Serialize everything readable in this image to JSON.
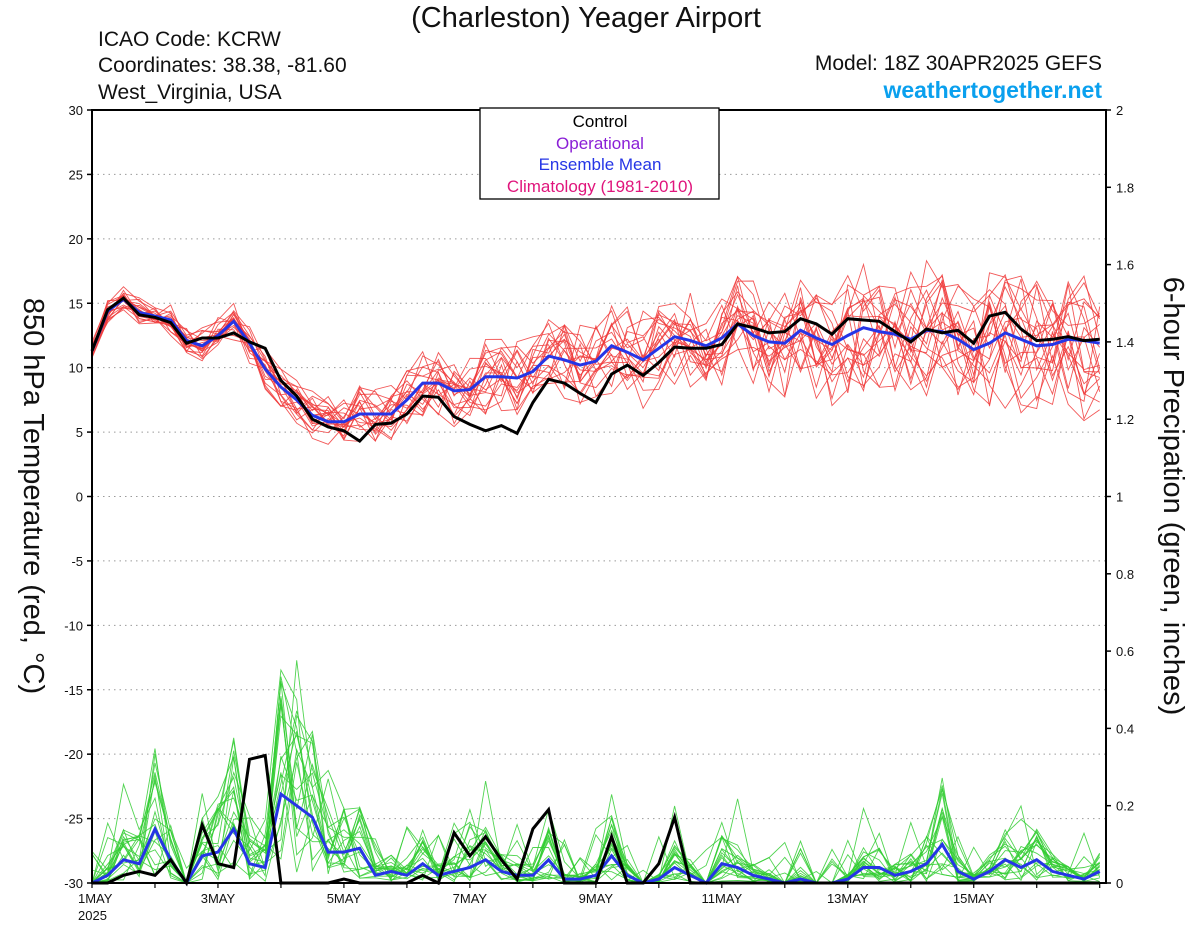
{
  "header": {
    "title": "(Charleston) Yeager Airport",
    "icao": "ICAO Code: KCRW",
    "coords": "Coordinates: 38.38, -81.60",
    "region": "West_Virginia, USA",
    "model": "Model: 18Z 30APR2025 GEFS",
    "site": "weathertogether.net"
  },
  "colors": {
    "control": "#000000",
    "operational": "#8a1fd6",
    "ensemble_mean": "#2535e6",
    "climatology": "#e0157c",
    "temp_members": "#f03a3a",
    "precip_members": "#33cc33",
    "site": "#0aa0ee"
  },
  "chart_data": {
    "type": "line",
    "x_ticks": [
      {
        "day": 1,
        "label": "1MAY",
        "sublabel": "2025"
      },
      {
        "day": 3,
        "label": "3MAY"
      },
      {
        "day": 5,
        "label": "5MAY"
      },
      {
        "day": 7,
        "label": "7MAY"
      },
      {
        "day": 9,
        "label": "9MAY"
      },
      {
        "day": 11,
        "label": "11MAY"
      },
      {
        "day": 13,
        "label": "13MAY"
      },
      {
        "day": 15,
        "label": "15MAY"
      }
    ],
    "x_range_days": [
      1,
      17.1
    ],
    "ylabel_left": "850 hPa Temperature (red, °C)",
    "ylabel_right": "6-hour Precipation (green, inches)",
    "ylim_left": [
      -30,
      30
    ],
    "yticks_left": [
      30,
      25,
      20,
      15,
      10,
      5,
      0,
      -5,
      -10,
      -15,
      -20,
      -25,
      -30
    ],
    "ylim_right": [
      0,
      2
    ],
    "yticks_right": [
      "2",
      "1.8",
      "1.6",
      "1.4",
      "1.2",
      "1",
      "0.8",
      "0.6",
      "0.4",
      "0.2",
      "0"
    ],
    "grid": "dotted horizontal",
    "legend": {
      "placement": "top-center",
      "entries": [
        "Control",
        "Operational",
        "Ensemble Mean",
        "Climatology (1981-2010)"
      ]
    },
    "interval_hours": 6,
    "temperature": {
      "control": [
        11.3,
        14.5,
        15.4,
        14.1,
        13.9,
        13.5,
        11.9,
        12.3,
        12.3,
        12.7,
        12.0,
        11.5,
        9.0,
        7.8,
        6.0,
        5.4,
        5.1,
        4.3,
        5.6,
        5.7,
        6.4,
        7.8,
        7.7,
        6.2,
        5.6,
        5.1,
        5.5,
        4.9,
        7.3,
        9.1,
        8.8,
        8.0,
        7.3,
        9.5,
        10.2,
        9.4,
        10.4,
        11.6,
        11.5,
        11.5,
        11.8,
        13.4,
        13.1,
        12.7,
        12.8,
        13.8,
        13.4,
        12.6,
        13.8,
        13.7,
        13.6,
        12.8,
        12.0,
        13.0,
        12.7,
        12.9,
        11.9,
        14.0,
        14.3,
        13.0,
        12.1,
        12.2,
        12.4,
        12.1,
        12.2
      ],
      "ensemble_mean": [
        11.3,
        14.4,
        15.3,
        14.3,
        14.0,
        13.7,
        12.1,
        11.7,
        12.5,
        13.6,
        11.9,
        9.9,
        8.5,
        7.5,
        6.3,
        5.8,
        5.8,
        6.4,
        6.4,
        6.4,
        7.5,
        8.8,
        8.8,
        8.2,
        8.3,
        9.3,
        9.3,
        9.2,
        9.7,
        10.9,
        10.6,
        10.2,
        10.5,
        11.7,
        11.2,
        10.6,
        11.5,
        12.4,
        12.1,
        11.7,
        12.3,
        13.4,
        12.5,
        12.0,
        11.9,
        12.9,
        12.3,
        11.8,
        12.5,
        13.1,
        12.8,
        12.6,
        12.2,
        12.9,
        12.8,
        12.2,
        11.4,
        11.9,
        12.7,
        12.2,
        11.7,
        11.8,
        12.2,
        12.1,
        11.9
      ]
    },
    "precipitation": {
      "control": [
        0,
        0,
        0.02,
        0.03,
        0.02,
        0.06,
        0,
        0.15,
        0.05,
        0.04,
        0.32,
        0.33,
        0,
        0,
        0,
        0,
        0.01,
        0,
        0,
        0,
        0,
        0.02,
        0,
        0.13,
        0.07,
        0.12,
        0.06,
        0.01,
        0.14,
        0.19,
        0,
        0,
        0,
        0.12,
        0,
        0,
        0.05,
        0.17,
        0,
        0,
        0,
        0,
        0,
        0,
        0,
        0,
        0,
        0,
        0,
        0,
        0,
        0,
        0,
        0,
        0,
        0,
        0,
        0,
        0,
        0,
        0,
        0,
        0,
        0,
        0
      ],
      "ensemble_mean": [
        0,
        0.02,
        0.06,
        0.05,
        0.14,
        0.06,
        0,
        0.07,
        0.08,
        0.14,
        0.05,
        0.04,
        0.23,
        0.2,
        0.17,
        0.08,
        0.08,
        0.09,
        0.02,
        0.03,
        0.02,
        0.05,
        0.02,
        0.03,
        0.04,
        0.06,
        0.03,
        0.02,
        0.02,
        0.06,
        0.01,
        0.01,
        0.02,
        0.07,
        0.02,
        0,
        0.01,
        0.04,
        0.02,
        0,
        0.05,
        0.04,
        0.02,
        0.01,
        0,
        0.01,
        0,
        0,
        0.01,
        0.04,
        0.04,
        0.02,
        0.03,
        0.05,
        0.1,
        0.03,
        0.01,
        0.03,
        0.06,
        0.04,
        0.06,
        0.03,
        0.02,
        0.01,
        0.03
      ]
    }
  }
}
